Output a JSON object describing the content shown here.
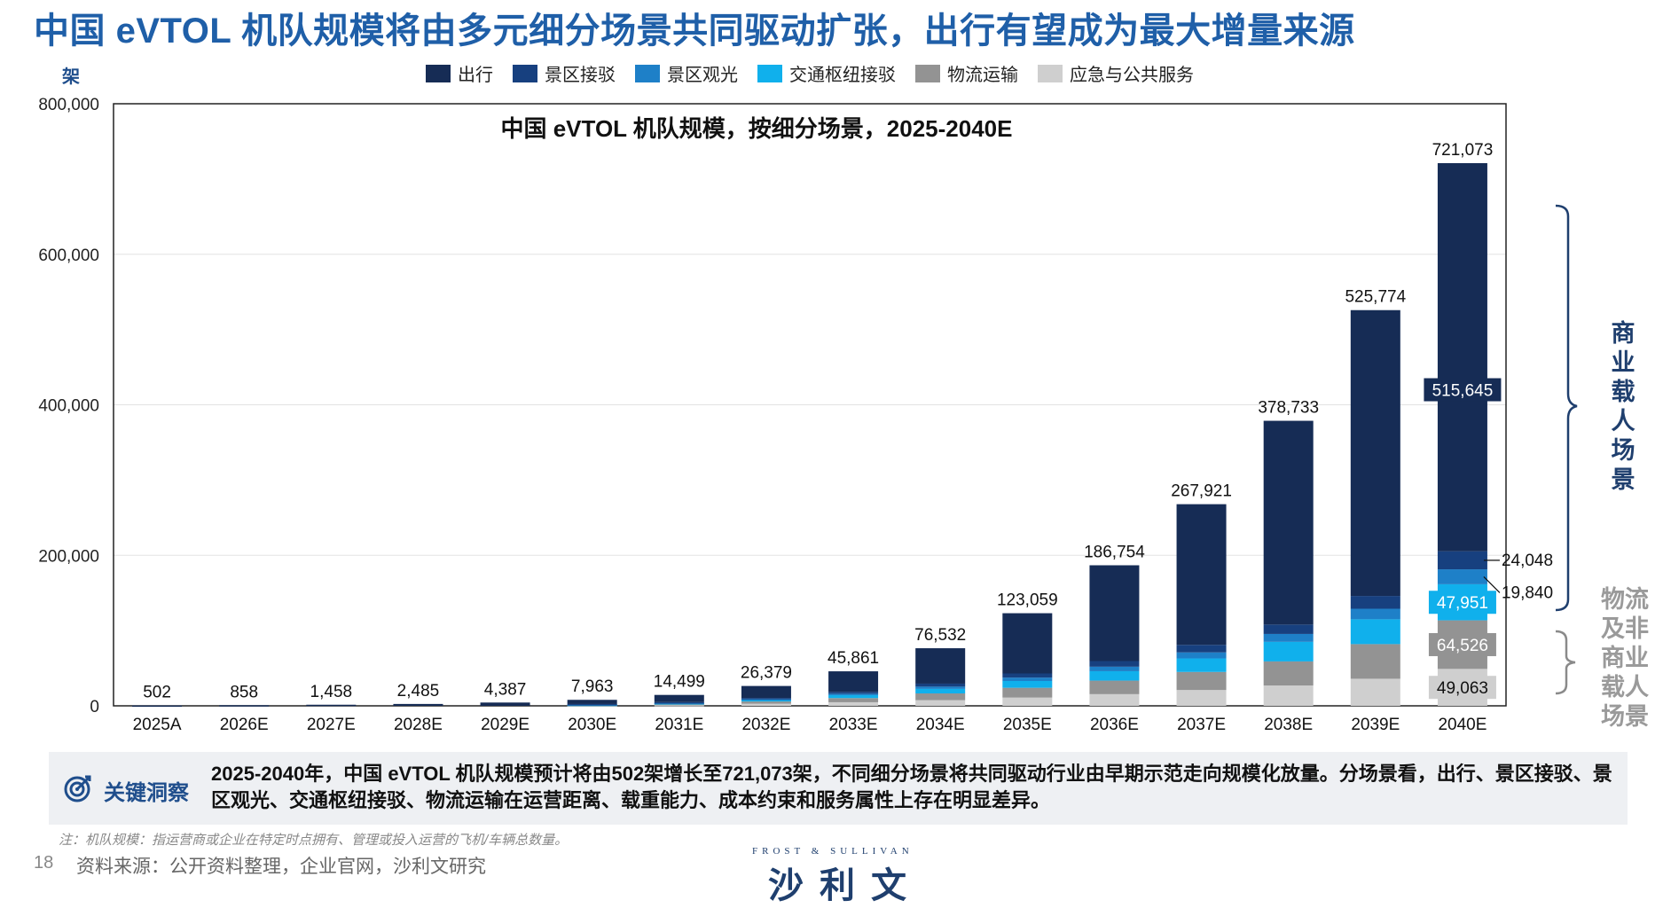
{
  "title": "中国 eVTOL 机队规模将由多元细分场景共同驱动扩张，出行有望成为最大增量来源",
  "unit": "架",
  "legend": [
    {
      "label": "出行",
      "color": "#162c55"
    },
    {
      "label": "景区接驳",
      "color": "#17407f"
    },
    {
      "label": "景区观光",
      "color": "#1e80c8"
    },
    {
      "label": "交通枢纽接驳",
      "color": "#10b0ec"
    },
    {
      "label": "物流运输",
      "color": "#939393"
    },
    {
      "label": "应急与公共服务",
      "color": "#cfcfcf"
    }
  ],
  "chart_data": {
    "type": "bar",
    "stacked": true,
    "title": "中国 eVTOL 机队规模，按细分场景，2025-2040E",
    "ylabel": "架",
    "ylim": [
      0,
      800000
    ],
    "yticks": [
      "0",
      "200,000",
      "400,000",
      "600,000",
      "800,000"
    ],
    "categories": [
      "2025A",
      "2026E",
      "2027E",
      "2028E",
      "2029E",
      "2030E",
      "2031E",
      "2032E",
      "2033E",
      "2034E",
      "2035E",
      "2036E",
      "2037E",
      "2038E",
      "2039E",
      "2040E"
    ],
    "totals": [
      502,
      858,
      1458,
      2485,
      4387,
      7963,
      14499,
      26379,
      45861,
      76532,
      123059,
      186754,
      267921,
      378733,
      525774,
      721073
    ],
    "total_labels": [
      "502",
      "858",
      "1,458",
      "2,485",
      "4,387",
      "7,963",
      "14,499",
      "26,379",
      "45,861",
      "76,532",
      "123,059",
      "186,754",
      "267,921",
      "378,733",
      "525,774",
      "721,073"
    ],
    "series": [
      {
        "name": "应急与公共服务",
        "values": [
          0,
          0,
          0,
          0,
          0,
          500,
          1300,
          2800,
          4800,
          7500,
          11000,
          15500,
          21000,
          27000,
          36000,
          49063
        ]
      },
      {
        "name": "物流运输",
        "values": [
          0,
          0,
          0,
          0,
          0,
          500,
          1200,
          3000,
          5500,
          9000,
          13000,
          18000,
          24000,
          32000,
          46000,
          64526
        ]
      },
      {
        "name": "交通枢纽接驳",
        "values": [
          0,
          0,
          0,
          0,
          0,
          500,
          1000,
          2000,
          3800,
          6000,
          9000,
          12500,
          18000,
          26000,
          33000,
          47951
        ]
      },
      {
        "name": "景区观光",
        "values": [
          0,
          0,
          0,
          0,
          0,
          400,
          600,
          1200,
          2000,
          3000,
          4500,
          6000,
          8000,
          10500,
          14000,
          19840
        ]
      },
      {
        "name": "景区接驳",
        "values": [
          0,
          0,
          0,
          0,
          0,
          500,
          800,
          1500,
          2500,
          4000,
          5500,
          7500,
          10000,
          12500,
          17000,
          24048
        ]
      },
      {
        "name": "出行",
        "values": [
          502,
          858,
          1458,
          2485,
          4387,
          5563,
          9599,
          15879,
          27261,
          47032,
          80059,
          127254,
          186921,
          270733,
          379774,
          515645
        ]
      }
    ],
    "segment_labels_2040": [
      {
        "series": "应急与公共服务",
        "text": "49,063"
      },
      {
        "series": "物流运输",
        "text": "64,526"
      },
      {
        "series": "交通枢纽接驳",
        "text": "47,951"
      },
      {
        "series": "景区观光",
        "text": "19,840"
      },
      {
        "series": "景区接驳",
        "text": "24,048"
      },
      {
        "series": "出行",
        "text": "515,645"
      }
    ]
  },
  "side_labels": {
    "commercial": "商业载人场景",
    "logistics": "物流及非商业载人场景"
  },
  "insight": {
    "heading": "关键洞察",
    "text": "2025-2040年，中国 eVTOL 机队规模预计将由502架增长至721,073架，不同细分场景将共同驱动行业由早期示范走向规模化放量。分场景看，出行、景区接驳、景区观光、交通枢纽接驳、物流运输在运营距离、载重能力、成本约束和服务属性上存在明显差异。"
  },
  "note": "注：机队规模：指运营商或企业在特定时点拥有、管理或投入运营的飞机/车辆总数量。",
  "footer": {
    "page": "18",
    "source": "资料来源：公开资料整理，企业官网，沙利文研究",
    "logo_top": "FROST & SULLIVAN",
    "logo_main": "沙利文"
  },
  "colors": {
    "title": "#1f5fa8",
    "bracket_commercial": "#1f3f6e",
    "bracket_logistics": "#8a8a8a"
  }
}
